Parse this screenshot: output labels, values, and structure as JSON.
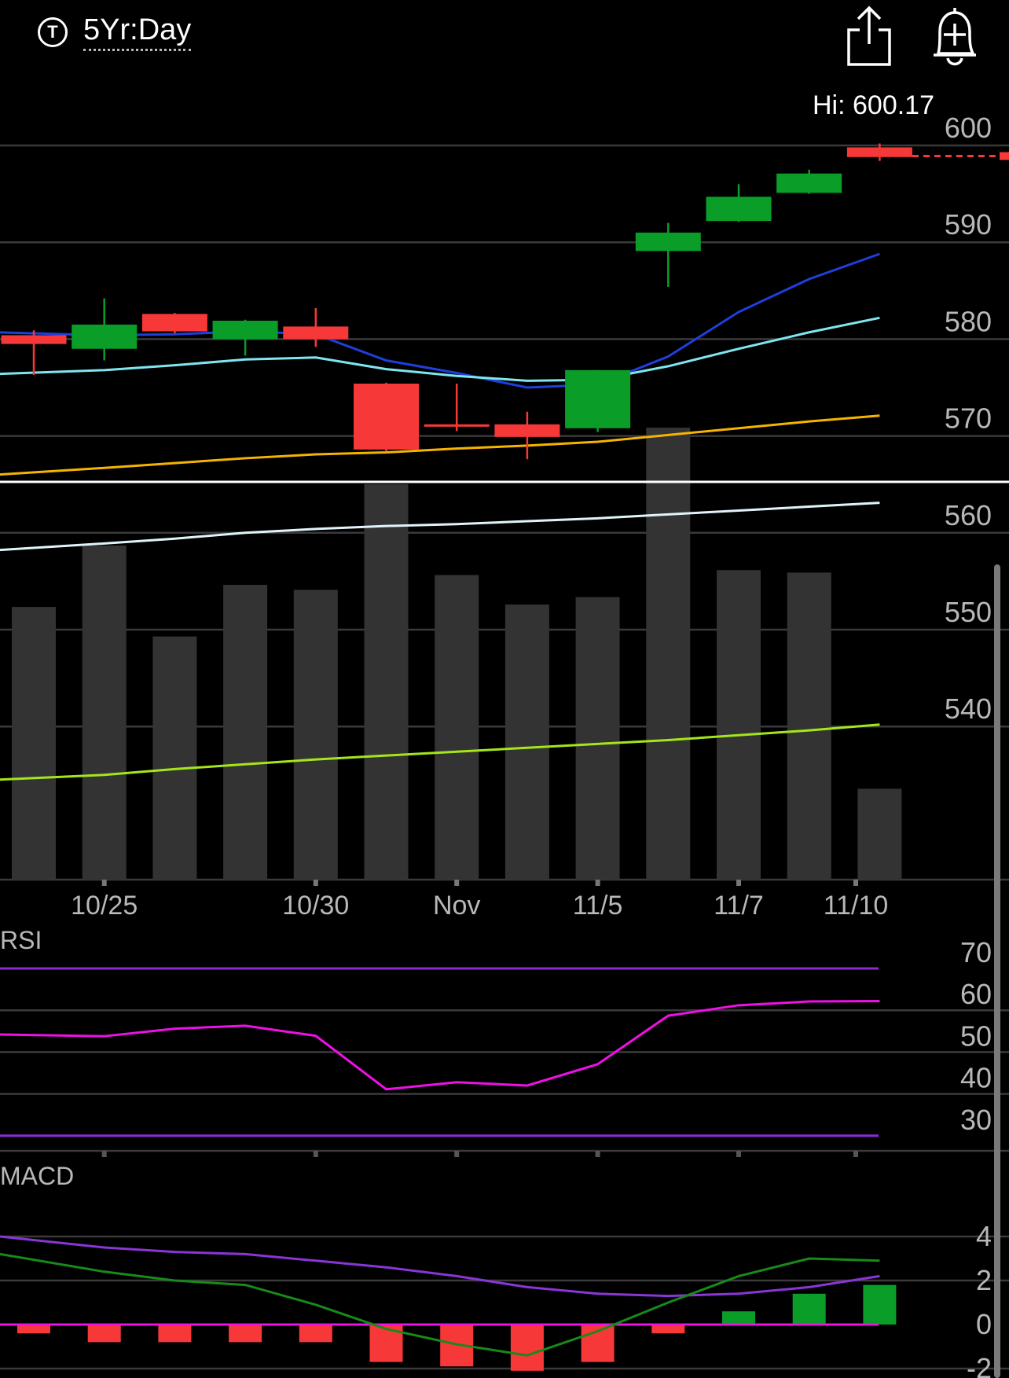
{
  "header": {
    "ticker_badge": "T",
    "range_label": "5Yr:Day",
    "icons": [
      "share-icon",
      "add-alert-icon"
    ],
    "hi_label": "Hi: 600.17"
  },
  "colors": {
    "up": "#0a9e28",
    "down": "#f73838",
    "sma_fast": "#1f3fdc",
    "sma_mid": "#7fe6f0",
    "sma_slow": "#f5b400",
    "sma_long1": "#e0f4f8",
    "sma_long2": "#a4e61a",
    "rsi_line": "#ee10e6",
    "rsi_band": "#8a2bd6",
    "macd_line": "#178a1a",
    "signal_line": "#8a35d6",
    "zero_line": "#ee10e6",
    "volume": "#333333",
    "grid": "#3a3a3a"
  },
  "chart_data": [
    {
      "type": "candlestick",
      "title": "",
      "xlabel": "",
      "ylabel": "",
      "ylim": [
        528,
        604
      ],
      "y_ticks": [
        600,
        590,
        580,
        570,
        560,
        550,
        540
      ],
      "x_tick_labels": [
        {
          "index": 1,
          "label": "10/25"
        },
        {
          "index": 4,
          "label": "10/30"
        },
        {
          "index": 6,
          "label": "Nov"
        },
        {
          "index": 8,
          "label": "11/5"
        },
        {
          "index": 10,
          "label": "11/7"
        },
        {
          "index": 12,
          "label": "11/10"
        }
      ],
      "annotation": "Hi: 600.17",
      "last_price": 598.9,
      "candles": [
        {
          "open": 580.4,
          "high": 580.9,
          "low": 576.3,
          "close": 579.5
        },
        {
          "open": 579.0,
          "high": 584.2,
          "low": 577.8,
          "close": 581.5
        },
        {
          "open": 582.6,
          "high": 582.7,
          "low": 580.6,
          "close": 580.8
        },
        {
          "open": 580.0,
          "high": 582.0,
          "low": 578.3,
          "close": 581.9
        },
        {
          "open": 581.3,
          "high": 583.2,
          "low": 579.2,
          "close": 580.0
        },
        {
          "open": 575.4,
          "high": 575.5,
          "low": 568.4,
          "close": 568.6
        },
        {
          "open": 571.2,
          "high": 575.4,
          "low": 570.5,
          "close": 571.1
        },
        {
          "open": 571.2,
          "high": 572.5,
          "low": 567.6,
          "close": 569.9
        },
        {
          "open": 570.8,
          "high": 576.8,
          "low": 570.4,
          "close": 576.8
        },
        {
          "open": 589.1,
          "high": 592.0,
          "low": 585.4,
          "close": 591.0
        },
        {
          "open": 592.2,
          "high": 596.0,
          "low": 592.1,
          "close": 594.7
        },
        {
          "open": 595.1,
          "high": 597.5,
          "low": 595.0,
          "close": 597.1
        },
        {
          "open": 599.8,
          "high": 600.2,
          "low": 598.4,
          "close": 598.8
        }
      ],
      "series": [
        {
          "values": [
            580.7,
            580.4,
            580.5,
            580.8,
            580.5,
            577.8,
            576.5,
            575.0,
            575.3,
            578.2,
            582.8,
            586.2,
            588.8
          ]
        },
        {
          "values": [
            576.4,
            576.8,
            577.3,
            577.9,
            578.1,
            576.9,
            576.2,
            575.7,
            575.8,
            577.2,
            579.0,
            580.7,
            582.2
          ]
        },
        {
          "values": [
            566.0,
            566.7,
            567.2,
            567.7,
            568.1,
            568.3,
            568.7,
            569.0,
            569.4,
            570.1,
            570.8,
            571.5,
            572.1
          ]
        },
        {
          "values": [
            558.2,
            558.9,
            559.4,
            560.0,
            560.4,
            560.7,
            560.9,
            561.2,
            561.5,
            561.9,
            562.3,
            562.7,
            563.1
          ]
        },
        {
          "values": [
            534.5,
            535.0,
            535.6,
            536.1,
            536.6,
            537.0,
            537.4,
            537.8,
            538.2,
            538.6,
            539.1,
            539.6,
            540.2
          ]
        }
      ],
      "volume": [
        55.5,
        68.0,
        49.5,
        60.0,
        59.0,
        80.5,
        62.0,
        56.0,
        57.5,
        92.0,
        63.0,
        62.5,
        18.5
      ],
      "volume_ylim": [
        0,
        100
      ]
    },
    {
      "type": "line",
      "title": "RSI",
      "ylim": [
        25,
        73
      ],
      "y_ticks": [
        70,
        60,
        50,
        40,
        30
      ],
      "bands": [
        70,
        30
      ],
      "series": [
        {
          "values": [
            54.2,
            53.8,
            55.6,
            56.3,
            53.9,
            41.1,
            42.8,
            42.0,
            47.1,
            58.7,
            61.2,
            62.1,
            62.2
          ]
        }
      ]
    },
    {
      "type": "line+bar",
      "title": "MACD",
      "ylim": [
        -2.5,
        5
      ],
      "y_ticks": [
        4,
        2,
        0,
        -2
      ],
      "series": [
        {
          "values": [
            4.0,
            3.5,
            3.3,
            3.2,
            2.9,
            2.6,
            2.2,
            1.7,
            1.4,
            1.3,
            1.4,
            1.7,
            2.2
          ]
        },
        {
          "values": [
            3.2,
            2.4,
            2.0,
            1.8,
            0.9,
            -0.2,
            -0.9,
            -1.4,
            -0.3,
            1.0,
            2.2,
            3.0,
            2.9
          ]
        },
        {
          "values": [
            -0.4,
            -0.8,
            -0.8,
            -0.8,
            -0.8,
            -1.7,
            -1.9,
            -2.1,
            -1.7,
            -0.4,
            0.6,
            1.4,
            1.8
          ]
        }
      ]
    }
  ]
}
